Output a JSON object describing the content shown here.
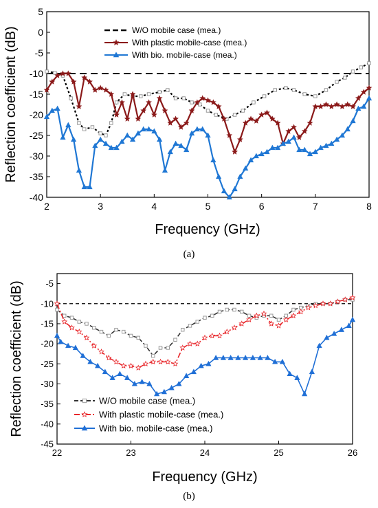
{
  "chart_data": [
    {
      "type": "line",
      "panel_label": "(a)",
      "xlabel": "Frequency (GHz)",
      "ylabel": "Reflection coefficient (dB)",
      "xlim": [
        2,
        8
      ],
      "ylim": [
        -40,
        5
      ],
      "xticks": [
        2,
        3,
        4,
        5,
        6,
        7,
        8
      ],
      "yticks": [
        5,
        0,
        -5,
        -10,
        -15,
        -20,
        -25,
        -30,
        -35,
        -40
      ],
      "grid": false,
      "legend_position": "top-center",
      "reference_line": {
        "y": -10,
        "color": "#000000",
        "style": "dashed"
      },
      "series": [
        {
          "name": "W/O mobile case (mea.)",
          "color": "#000000",
          "marker": "square-open",
          "x": [
            2.0,
            2.15,
            2.3,
            2.45,
            2.6,
            2.7,
            2.85,
            3.0,
            3.1,
            3.2,
            3.3,
            3.45,
            3.6,
            3.75,
            3.9,
            4.1,
            4.25,
            4.4,
            4.55,
            4.7,
            4.85,
            5.0,
            5.15,
            5.35,
            5.5,
            5.65,
            5.85,
            6.05,
            6.25,
            6.45,
            6.6,
            6.8,
            7.0,
            7.2,
            7.4,
            7.55,
            7.7,
            7.85,
            8.0
          ],
          "y": [
            -9.5,
            -9.8,
            -10.5,
            -16,
            -22,
            -23.5,
            -23,
            -24.5,
            -25,
            -22,
            -17,
            -15,
            -15.5,
            -15.5,
            -15,
            -14.5,
            -14,
            -16,
            -16,
            -17,
            -17.5,
            -19,
            -20,
            -21,
            -20,
            -19,
            -17,
            -15.5,
            -14,
            -13.5,
            -14,
            -15,
            -15.5,
            -14,
            -12,
            -11,
            -9.5,
            -8.5,
            -7.5
          ]
        },
        {
          "name": "With plastic mobile-case (mea.)",
          "color": "#8b1a1a",
          "marker": "star",
          "x": [
            2.0,
            2.1,
            2.2,
            2.3,
            2.4,
            2.5,
            2.6,
            2.7,
            2.8,
            2.9,
            3.0,
            3.1,
            3.2,
            3.3,
            3.4,
            3.5,
            3.6,
            3.7,
            3.8,
            3.9,
            4.0,
            4.1,
            4.2,
            4.3,
            4.4,
            4.5,
            4.6,
            4.7,
            4.8,
            4.9,
            5.0,
            5.1,
            5.2,
            5.3,
            5.4,
            5.5,
            5.6,
            5.7,
            5.8,
            5.9,
            6.0,
            6.1,
            6.2,
            6.3,
            6.4,
            6.5,
            6.6,
            6.7,
            6.8,
            6.9,
            7.0,
            7.1,
            7.2,
            7.3,
            7.4,
            7.5,
            7.6,
            7.7,
            7.8,
            7.9,
            8.0
          ],
          "y": [
            -14,
            -12,
            -10.5,
            -10,
            -10,
            -12,
            -18,
            -11,
            -12,
            -14,
            -13.5,
            -14,
            -15,
            -20,
            -17,
            -21,
            -15,
            -21,
            -19,
            -17,
            -20,
            -16,
            -19,
            -22,
            -21,
            -23,
            -22,
            -19,
            -17,
            -16,
            -16.5,
            -17,
            -18,
            -21,
            -25,
            -29,
            -26,
            -22,
            -21,
            -21.5,
            -20,
            -19.5,
            -21,
            -22,
            -27,
            -24,
            -23,
            -25.5,
            -24,
            -22,
            -18,
            -18,
            -17.5,
            -18,
            -17.5,
            -18,
            -17.5,
            -18,
            -16,
            -14.5,
            -13.5
          ]
        },
        {
          "name": "With bio. mobile-case (mea.)",
          "color": "#1f77d4",
          "marker": "triangle",
          "x": [
            2.0,
            2.1,
            2.2,
            2.3,
            2.4,
            2.5,
            2.6,
            2.7,
            2.8,
            2.9,
            3.0,
            3.1,
            3.2,
            3.3,
            3.4,
            3.5,
            3.6,
            3.7,
            3.8,
            3.9,
            4.0,
            4.1,
            4.2,
            4.3,
            4.4,
            4.5,
            4.6,
            4.7,
            4.8,
            4.9,
            5.0,
            5.1,
            5.2,
            5.3,
            5.4,
            5.5,
            5.6,
            5.7,
            5.8,
            5.9,
            6.0,
            6.1,
            6.2,
            6.3,
            6.4,
            6.5,
            6.6,
            6.7,
            6.8,
            6.9,
            7.0,
            7.1,
            7.2,
            7.3,
            7.4,
            7.5,
            7.6,
            7.7,
            7.8,
            7.9,
            8.0
          ],
          "y": [
            -20.5,
            -19,
            -18.5,
            -25.5,
            -22.5,
            -26,
            -33.5,
            -37.5,
            -37.5,
            -27.5,
            -26,
            -27,
            -28,
            -28,
            -26.5,
            -25,
            -26,
            -24.5,
            -23.5,
            -23.5,
            -24,
            -26,
            -33.5,
            -29,
            -27,
            -27.5,
            -28.5,
            -24.5,
            -23.5,
            -23.5,
            -25,
            -31,
            -35,
            -38.5,
            -40,
            -38,
            -35,
            -33,
            -31,
            -30,
            -29.5,
            -29,
            -28,
            -28,
            -27,
            -26.5,
            -25.5,
            -28.5,
            -28.5,
            -29.5,
            -29,
            -28,
            -27.5,
            -27,
            -26,
            -25,
            -23.5,
            -21.5,
            -18.5,
            -18,
            -16
          ]
        }
      ]
    },
    {
      "type": "line",
      "panel_label": "(b)",
      "xlabel": "Frequency (GHz)",
      "ylabel": "Reflection coefficient (dB)",
      "xlim": [
        22,
        26
      ],
      "ylim": [
        -45,
        -2.5
      ],
      "xticks": [
        22,
        23,
        24,
        25,
        26
      ],
      "yticks": [
        -5,
        -10,
        -15,
        -20,
        -25,
        -30,
        -35,
        -40,
        -45
      ],
      "grid": false,
      "legend_position": "bottom-left",
      "reference_line": {
        "y": -10,
        "color": "#000000",
        "style": "dashed"
      },
      "series": [
        {
          "name": "W/O mobile case (mea.)",
          "color": "#333333",
          "marker": "square-open",
          "x": [
            22.0,
            22.1,
            22.2,
            22.3,
            22.4,
            22.5,
            22.6,
            22.7,
            22.8,
            22.9,
            23.0,
            23.1,
            23.2,
            23.3,
            23.4,
            23.5,
            23.6,
            23.7,
            23.8,
            23.9,
            24.0,
            24.1,
            24.2,
            24.3,
            24.4,
            24.5,
            24.6,
            24.7,
            24.8,
            24.9,
            25.0,
            25.1,
            25.2,
            25.3,
            25.4,
            25.5,
            25.6,
            25.7,
            25.8,
            25.9,
            26.0
          ],
          "y": [
            -11.5,
            -13,
            -13.5,
            -14.5,
            -15,
            -16,
            -17,
            -18,
            -16.5,
            -17,
            -18,
            -18.5,
            -20.5,
            -23,
            -21,
            -21,
            -19,
            -16.5,
            -15.5,
            -14.5,
            -13.5,
            -13,
            -12,
            -11.5,
            -11.5,
            -12,
            -13,
            -13.5,
            -13,
            -13,
            -14,
            -13,
            -11.5,
            -11,
            -10.5,
            -10,
            -10,
            -10,
            -9.5,
            -9,
            -9
          ]
        },
        {
          "name": "With plastic mobile-case (mea.)",
          "color": "#e8262a",
          "marker": "star-open",
          "x": [
            22.0,
            22.1,
            22.2,
            22.3,
            22.4,
            22.5,
            22.6,
            22.7,
            22.8,
            22.9,
            23.0,
            23.1,
            23.2,
            23.3,
            23.4,
            23.5,
            23.6,
            23.7,
            23.8,
            23.9,
            24.0,
            24.1,
            24.2,
            24.3,
            24.4,
            24.5,
            24.6,
            24.7,
            24.8,
            24.9,
            25.0,
            25.1,
            25.2,
            25.3,
            25.4,
            25.5,
            25.6,
            25.7,
            25.8,
            25.9,
            26.0
          ],
          "y": [
            -10,
            -14.5,
            -16,
            -17,
            -18.5,
            -20.5,
            -22,
            -23.5,
            -24.5,
            -25.5,
            -25.5,
            -26,
            -25,
            -24.5,
            -24.5,
            -24.5,
            -25,
            -21,
            -20,
            -20,
            -18.5,
            -18,
            -18,
            -17,
            -16,
            -15,
            -14,
            -13,
            -12.5,
            -15,
            -15.5,
            -14,
            -13,
            -12,
            -11,
            -10.5,
            -10,
            -10,
            -9.5,
            -9,
            -8.5
          ]
        },
        {
          "name": "With bio. mobile-case (mea.)",
          "color": "#1f6fd6",
          "marker": "triangle",
          "x": [
            22.0,
            22.05,
            22.15,
            22.25,
            22.35,
            22.45,
            22.55,
            22.65,
            22.75,
            22.85,
            22.95,
            23.05,
            23.15,
            23.25,
            23.35,
            23.45,
            23.55,
            23.65,
            23.75,
            23.85,
            23.95,
            24.05,
            24.15,
            24.25,
            24.35,
            24.45,
            24.55,
            24.65,
            24.75,
            24.85,
            24.95,
            25.05,
            25.15,
            25.25,
            25.35,
            25.45,
            25.55,
            25.65,
            25.75,
            25.85,
            25.95,
            26.0
          ],
          "y": [
            -18,
            -19.5,
            -20.5,
            -21,
            -23,
            -24.5,
            -25.5,
            -27,
            -28.5,
            -27.5,
            -28.5,
            -30,
            -29.5,
            -30,
            -32.5,
            -32,
            -31,
            -30,
            -28,
            -27,
            -25.5,
            -25,
            -23.5,
            -23.5,
            -23.5,
            -23.5,
            -23.5,
            -23.5,
            -23.5,
            -23.5,
            -24.5,
            -24.5,
            -27.5,
            -28.5,
            -32.5,
            -27,
            -20.5,
            -18.5,
            -17.5,
            -16.5,
            -15.5,
            -14
          ]
        }
      ]
    }
  ]
}
